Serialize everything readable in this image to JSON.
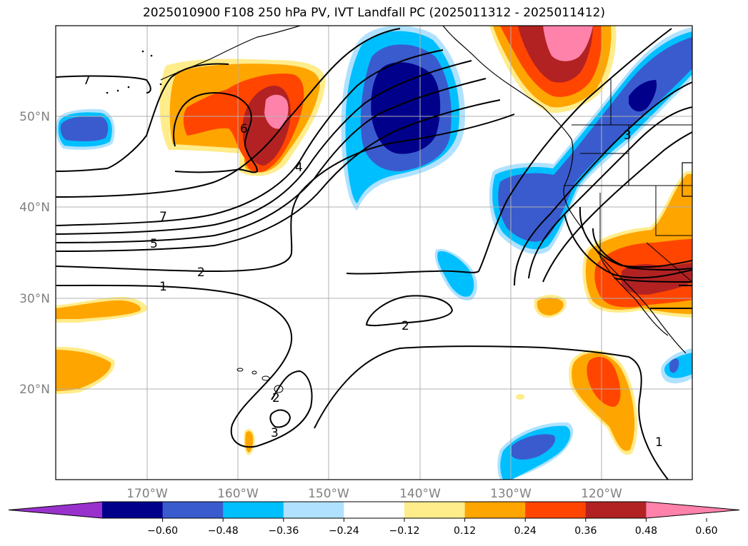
{
  "title": "2025010900 F108 250 hPa PV, IVT Landfall PC (2025011312 - 2025011412)",
  "map": {
    "projection": "PlateCarree",
    "lon_range": [
      -180,
      -110
    ],
    "lat_range": [
      10,
      60
    ],
    "gridlines": true,
    "lon_ticks": [
      "170°W",
      "160°W",
      "150°W",
      "140°W",
      "130°W",
      "120°W"
    ],
    "lat_ticks": [
      "50°N",
      "40°N",
      "30°N",
      "20°N"
    ],
    "features": [
      "coastlines",
      "country borders",
      "US state borders"
    ]
  },
  "colorbar": {
    "ticks": [
      "−0.60",
      "−0.48",
      "−0.36",
      "−0.24",
      "−0.12",
      "0.12",
      "0.24",
      "0.36",
      "0.48",
      "0.60"
    ],
    "colors": [
      "#9932cc",
      "#00008b",
      "#3a5bcd",
      "#00bfff",
      "#b0e2ff",
      "#ffffff",
      "#ffec8b",
      "#ffa500",
      "#ff4500",
      "#b22222",
      "#ff82ab"
    ],
    "extend": "both"
  },
  "contour_labels": [
    "7",
    "6",
    "4",
    "7",
    "5",
    "2",
    "1",
    "2",
    "2",
    "3",
    "3",
    "1"
  ]
}
